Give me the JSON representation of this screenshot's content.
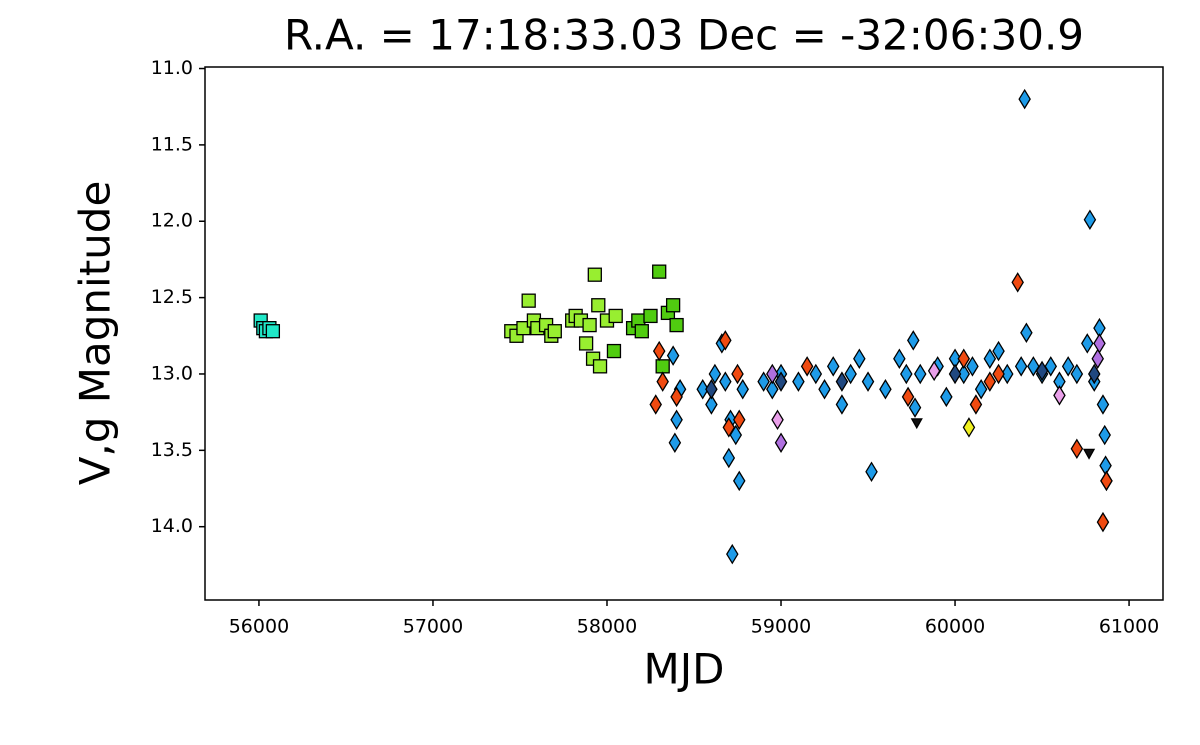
{
  "chart_data": {
    "type": "scatter",
    "title": "R.A. = 17:18:33.03   Dec = -32:06:30.9",
    "x_label": "MJD",
    "y_label": "V,g Magnitude",
    "xlim": [
      55690,
      61195
    ],
    "ylim": [
      10.99,
      14.48
    ],
    "y_inverted": true,
    "xticks": [
      56000,
      57000,
      58000,
      59000,
      60000,
      61000
    ],
    "yticks": [
      {
        "value": 11,
        "label": "11.0"
      },
      11.5,
      {
        "value": 12,
        "label": "12.0"
      },
      12.5,
      {
        "value": 13,
        "label": "13.0"
      },
      13.5,
      {
        "value": 14,
        "label": "14.0"
      }
    ],
    "grid": false,
    "series": [
      {
        "marker": "square",
        "color": "#20e8c8",
        "x": [
          56010,
          56025,
          56040,
          56060,
          56080
        ],
        "values": [
          12.65,
          12.7,
          12.72,
          12.7,
          12.72
        ]
      },
      {
        "marker": "square",
        "color": "#98ee30",
        "x": [
          57450,
          57480,
          57520,
          57550,
          57580,
          57600,
          57650,
          57680,
          57700,
          57800,
          57820,
          57850,
          57880,
          57900,
          57920,
          57930,
          57950,
          57960,
          58000,
          58050
        ],
        "values": [
          12.72,
          12.75,
          12.7,
          12.52,
          12.65,
          12.7,
          12.68,
          12.75,
          12.72,
          12.65,
          12.62,
          12.65,
          12.8,
          12.68,
          12.9,
          12.35,
          12.55,
          12.95,
          12.65,
          12.62
        ]
      },
      {
        "marker": "square",
        "color": "#50cc10",
        "x": [
          58040,
          58150,
          58180,
          58200,
          58250,
          58300,
          58320,
          58350,
          58380,
          58400
        ],
        "values": [
          12.85,
          12.7,
          12.65,
          12.72,
          12.62,
          12.33,
          12.95,
          12.6,
          12.55,
          12.68
        ]
      },
      {
        "marker": "diamond",
        "color": "#1e9be8",
        "x": [
          58380,
          58390,
          58400,
          58420,
          58550,
          58600,
          58620,
          58660,
          58680,
          58700,
          58710,
          58720,
          58740,
          58760,
          58780,
          58900,
          58950,
          59000,
          59100,
          59200,
          59250,
          59300,
          59350,
          59400,
          59450,
          59500,
          59520,
          59600,
          59680,
          59720,
          59760,
          59770,
          59800,
          59900,
          59950,
          60000,
          60050,
          60100,
          60150,
          60200,
          60250,
          60300,
          60380,
          60400,
          60410,
          60450,
          60500,
          60550,
          60600,
          60650,
          60700,
          60760,
          60775,
          60800,
          60830,
          60850,
          60860,
          60865,
          60870
        ],
        "values": [
          12.88,
          13.45,
          13.3,
          13.1,
          13.1,
          13.2,
          13.0,
          12.8,
          13.05,
          13.55,
          13.3,
          14.18,
          13.4,
          13.7,
          13.1,
          13.05,
          13.1,
          13.0,
          13.05,
          13.0,
          13.1,
          12.95,
          13.2,
          13.0,
          12.9,
          13.05,
          13.64,
          13.1,
          12.9,
          13.0,
          12.78,
          13.22,
          13.0,
          12.95,
          13.15,
          12.9,
          13.0,
          12.95,
          13.1,
          12.9,
          12.85,
          13.0,
          12.95,
          11.2,
          12.73,
          12.95,
          13.0,
          12.95,
          13.05,
          12.95,
          13.0,
          12.8,
          11.99,
          13.05,
          12.7,
          13.2,
          13.4,
          13.6,
          13.7
        ]
      },
      {
        "marker": "diamond",
        "color": "#204880",
        "x": [
          58600,
          59000,
          59350,
          60000,
          60500,
          60800
        ],
        "values": [
          13.1,
          13.05,
          13.05,
          13.0,
          12.98,
          13.0
        ]
      },
      {
        "marker": "diamond",
        "color": "#f04a10",
        "x": [
          58280,
          58300,
          58320,
          58400,
          58680,
          58700,
          58750,
          58760,
          59150,
          59730,
          60050,
          60120,
          60200,
          60250,
          60360,
          60700,
          60850,
          60870
        ],
        "values": [
          13.2,
          12.85,
          13.05,
          13.15,
          12.78,
          13.35,
          13.0,
          13.3,
          12.95,
          13.15,
          12.9,
          13.2,
          13.05,
          13.0,
          12.4,
          13.49,
          13.97,
          13.7
        ]
      },
      {
        "marker": "diamond",
        "color": "#b070e0",
        "x": [
          58950,
          59000,
          60820,
          60830
        ],
        "values": [
          13.0,
          13.45,
          12.9,
          12.8
        ]
      },
      {
        "marker": "diamond",
        "color": "#eaa0ea",
        "x": [
          58980,
          59880,
          60600
        ],
        "values": [
          13.3,
          12.98,
          13.14
        ]
      },
      {
        "marker": "diamond",
        "color": "#f0f020",
        "x": [
          60080
        ],
        "values": [
          13.35
        ]
      },
      {
        "marker": "triangle",
        "color": "#111111",
        "x": [
          59780,
          60770
        ],
        "values": [
          13.32,
          13.52
        ]
      }
    ]
  }
}
